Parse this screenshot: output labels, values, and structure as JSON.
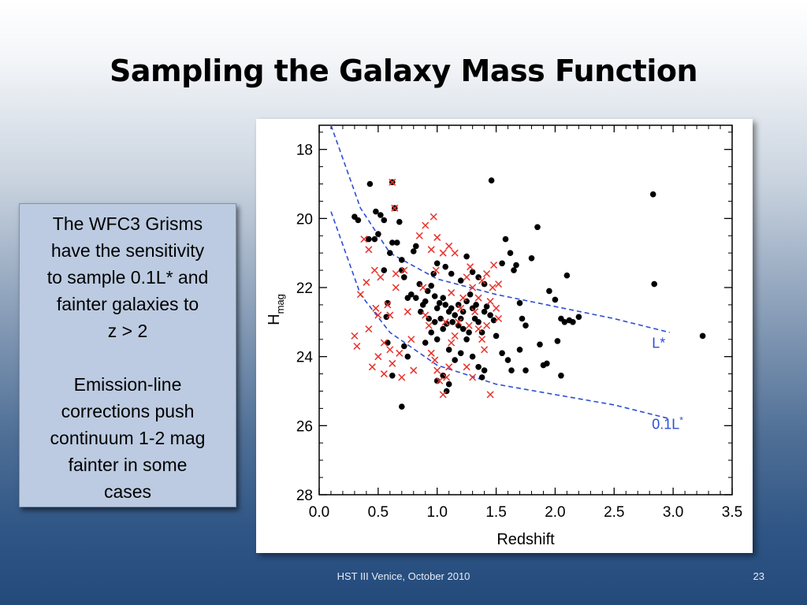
{
  "slide": {
    "title": "Sampling the Galaxy Mass Function",
    "footer": "HST III   Venice, October 2010",
    "page_number": "23"
  },
  "text_box": {
    "paragraph1": "The WFC3 Grisms\nhave the sensitivity\nto sample 0.1L* and\nfainter galaxies to\nz > 2",
    "paragraph2": "Emission-line\ncorrections push\ncontinuum 1-2 mag\nfainter in some\ncases",
    "background_color": "#bccbe1"
  },
  "chart_data": {
    "type": "scatter",
    "xlabel": "Redshift",
    "ylabel_main": "H",
    "ylabel_sub": "mag",
    "xlim": [
      0,
      3.5
    ],
    "ylim": [
      28,
      17.3
    ],
    "y_inverted": true,
    "x_ticks": [
      0.0,
      0.5,
      1.0,
      1.5,
      2.0,
      2.5,
      3.0,
      3.5
    ],
    "x_tick_labels": [
      "0.0",
      "0.5",
      "1.0",
      "1.5",
      "2.0",
      "2.5",
      "3.0",
      "3.5"
    ],
    "y_ticks": [
      18,
      20,
      22,
      24,
      26,
      28
    ],
    "y_tick_labels": [
      "18",
      "20",
      "22",
      "24",
      "26",
      "28"
    ],
    "grid": false,
    "series": [
      {
        "marker": "filled-circle",
        "color": "#000000",
        "points": [
          [
            0.3,
            19.95
          ],
          [
            0.33,
            20.05
          ],
          [
            0.42,
            20.6
          ],
          [
            0.43,
            19.0
          ],
          [
            0.48,
            19.8
          ],
          [
            0.5,
            20.45
          ],
          [
            0.52,
            19.9
          ],
          [
            0.55,
            20.05
          ],
          [
            0.62,
            18.95
          ],
          [
            0.64,
            19.7
          ],
          [
            0.68,
            20.1
          ],
          [
            0.55,
            21.5
          ],
          [
            0.57,
            22.85
          ],
          [
            0.58,
            22.45
          ],
          [
            0.6,
            21.0
          ],
          [
            0.62,
            20.7
          ],
          [
            0.66,
            20.7
          ],
          [
            0.7,
            21.5
          ],
          [
            0.7,
            21.2
          ],
          [
            0.72,
            21.7
          ],
          [
            0.75,
            22.3
          ],
          [
            0.78,
            22.2
          ],
          [
            0.8,
            20.95
          ],
          [
            0.82,
            20.8
          ],
          [
            0.85,
            21.9
          ],
          [
            0.88,
            22.5
          ],
          [
            0.9,
            22.4
          ],
          [
            0.92,
            22.1
          ],
          [
            0.95,
            21.95
          ],
          [
            0.98,
            22.25
          ],
          [
            1.0,
            22.6
          ],
          [
            1.02,
            22.45
          ],
          [
            1.05,
            22.3
          ],
          [
            1.07,
            22.5
          ],
          [
            1.1,
            22.7
          ],
          [
            1.12,
            22.6
          ],
          [
            1.15,
            22.8
          ],
          [
            1.18,
            22.5
          ],
          [
            1.2,
            22.9
          ],
          [
            1.22,
            23.2
          ],
          [
            1.25,
            22.4
          ],
          [
            1.28,
            22.2
          ],
          [
            1.3,
            22.6
          ],
          [
            1.32,
            22.9
          ],
          [
            1.35,
            23.0
          ],
          [
            1.38,
            23.3
          ],
          [
            1.4,
            22.7
          ],
          [
            1.42,
            22.55
          ],
          [
            1.45,
            22.8
          ],
          [
            1.48,
            22.95
          ],
          [
            0.72,
            23.7
          ],
          [
            0.75,
            24.0
          ],
          [
            0.9,
            23.6
          ],
          [
            0.95,
            23.3
          ],
          [
            1.0,
            23.5
          ],
          [
            1.05,
            23.2
          ],
          [
            1.1,
            23.8
          ],
          [
            1.15,
            24.1
          ],
          [
            1.2,
            23.9
          ],
          [
            1.25,
            23.5
          ],
          [
            1.3,
            24.0
          ],
          [
            1.35,
            24.3
          ],
          [
            1.38,
            24.6
          ],
          [
            1.4,
            24.4
          ],
          [
            1.0,
            24.7
          ],
          [
            1.05,
            24.55
          ],
          [
            1.08,
            25.0
          ],
          [
            1.1,
            24.8
          ],
          [
            0.7,
            25.45
          ],
          [
            0.97,
            21.6
          ],
          [
            1.0,
            21.3
          ],
          [
            1.07,
            21.4
          ],
          [
            1.12,
            21.6
          ],
          [
            1.2,
            21.8
          ],
          [
            1.25,
            21.1
          ],
          [
            1.3,
            21.55
          ],
          [
            1.35,
            21.7
          ],
          [
            1.4,
            21.9
          ],
          [
            1.46,
            18.9
          ],
          [
            1.55,
            21.3
          ],
          [
            1.58,
            20.6
          ],
          [
            1.62,
            21.0
          ],
          [
            1.65,
            21.5
          ],
          [
            1.67,
            21.35
          ],
          [
            1.7,
            22.45
          ],
          [
            1.72,
            22.9
          ],
          [
            1.75,
            23.1
          ],
          [
            1.8,
            21.15
          ],
          [
            1.85,
            20.25
          ],
          [
            1.87,
            23.65
          ],
          [
            1.9,
            24.25
          ],
          [
            1.93,
            24.2
          ],
          [
            1.95,
            22.1
          ],
          [
            2.0,
            22.35
          ],
          [
            2.02,
            23.55
          ],
          [
            2.05,
            22.9
          ],
          [
            2.08,
            23.0
          ],
          [
            2.1,
            21.65
          ],
          [
            2.12,
            22.95
          ],
          [
            2.15,
            23.0
          ],
          [
            2.2,
            22.85
          ],
          [
            2.83,
            19.3
          ],
          [
            2.84,
            21.9
          ],
          [
            3.25,
            23.4
          ],
          [
            1.5,
            23.4
          ],
          [
            1.55,
            23.9
          ],
          [
            1.6,
            24.1
          ],
          [
            1.63,
            24.4
          ],
          [
            1.7,
            23.8
          ],
          [
            1.75,
            24.4
          ],
          [
            2.05,
            24.55
          ],
          [
            0.82,
            22.3
          ],
          [
            0.86,
            22.7
          ],
          [
            0.93,
            22.9
          ],
          [
            0.98,
            23.0
          ],
          [
            1.03,
            22.9
          ],
          [
            1.08,
            23.05
          ],
          [
            1.13,
            23.0
          ],
          [
            1.18,
            23.1
          ],
          [
            1.22,
            22.7
          ],
          [
            1.27,
            23.3
          ],
          [
            1.33,
            22.5
          ],
          [
            0.58,
            23.6
          ],
          [
            0.62,
            24.55
          ],
          [
            0.47,
            20.6
          ]
        ]
      },
      {
        "marker": "red-x",
        "color": "#e8322c",
        "points": [
          [
            0.3,
            23.4
          ],
          [
            0.32,
            23.7
          ],
          [
            0.35,
            22.2
          ],
          [
            0.4,
            21.85
          ],
          [
            0.42,
            23.2
          ],
          [
            0.45,
            24.3
          ],
          [
            0.48,
            22.6
          ],
          [
            0.5,
            22.8
          ],
          [
            0.5,
            24.0
          ],
          [
            0.55,
            23.6
          ],
          [
            0.55,
            24.5
          ],
          [
            0.58,
            22.5
          ],
          [
            0.6,
            23.8
          ],
          [
            0.62,
            24.2
          ],
          [
            0.65,
            22.0
          ],
          [
            0.68,
            23.9
          ],
          [
            0.7,
            24.6
          ],
          [
            0.72,
            21.5
          ],
          [
            0.75,
            22.7
          ],
          [
            0.78,
            23.5
          ],
          [
            0.8,
            24.4
          ],
          [
            0.47,
            21.5
          ],
          [
            0.42,
            20.9
          ],
          [
            0.38,
            20.6
          ],
          [
            0.52,
            21.7
          ],
          [
            0.65,
            21.6
          ],
          [
            0.62,
            18.95
          ],
          [
            0.64,
            19.7
          ],
          [
            0.88,
            22.0
          ],
          [
            0.9,
            22.8
          ],
          [
            0.93,
            23.1
          ],
          [
            0.95,
            23.9
          ],
          [
            0.98,
            24.1
          ],
          [
            1.0,
            24.4
          ],
          [
            1.02,
            24.7
          ],
          [
            1.05,
            25.1
          ],
          [
            1.08,
            24.6
          ],
          [
            1.1,
            24.3
          ],
          [
            1.12,
            23.6
          ],
          [
            1.15,
            23.4
          ],
          [
            1.18,
            23.0
          ],
          [
            1.2,
            22.6
          ],
          [
            1.22,
            22.3
          ],
          [
            1.25,
            21.7
          ],
          [
            1.28,
            21.4
          ],
          [
            1.3,
            22.0
          ],
          [
            1.32,
            22.7
          ],
          [
            1.35,
            23.2
          ],
          [
            1.38,
            23.5
          ],
          [
            1.4,
            23.8
          ],
          [
            1.42,
            23.1
          ],
          [
            1.45,
            22.4
          ],
          [
            1.47,
            22.0
          ],
          [
            1.5,
            22.6
          ],
          [
            1.52,
            22.9
          ],
          [
            1.45,
            25.1
          ],
          [
            1.3,
            24.6
          ],
          [
            1.25,
            24.3
          ],
          [
            0.85,
            20.5
          ],
          [
            0.9,
            20.2
          ],
          [
            0.95,
            20.9
          ],
          [
            1.0,
            20.55
          ],
          [
            1.05,
            21.0
          ],
          [
            1.1,
            20.8
          ],
          [
            1.15,
            21.0
          ],
          [
            0.97,
            19.95
          ],
          [
            0.99,
            21.5
          ],
          [
            1.12,
            22.15
          ],
          [
            1.35,
            22.3
          ],
          [
            1.38,
            21.8
          ],
          [
            1.42,
            21.6
          ],
          [
            1.48,
            21.35
          ],
          [
            1.52,
            21.9
          ],
          [
            0.6,
            22.8
          ],
          [
            1.07,
            23.0
          ],
          [
            1.27,
            23.1
          ]
        ]
      }
    ],
    "curves": [
      {
        "label": "L*",
        "color": "#2b4ed6",
        "style": "dashed",
        "points": [
          [
            0.1,
            17.3
          ],
          [
            0.35,
            19.7
          ],
          [
            0.6,
            21.0
          ],
          [
            1.0,
            21.75
          ],
          [
            1.5,
            22.2
          ],
          [
            2.0,
            22.55
          ],
          [
            2.5,
            22.9
          ],
          [
            2.97,
            23.3
          ]
        ]
      },
      {
        "label": "0.1L",
        "label_superscript": "*",
        "color": "#2b4ed6",
        "style": "dashed",
        "points": [
          [
            0.1,
            19.8
          ],
          [
            0.35,
            22.2
          ],
          [
            0.6,
            23.3
          ],
          [
            1.0,
            24.25
          ],
          [
            1.5,
            24.8
          ],
          [
            2.0,
            25.1
          ],
          [
            2.5,
            25.4
          ],
          [
            2.97,
            25.8
          ]
        ]
      }
    ],
    "curve_label_positions": [
      [
        2.82,
        23.75
      ],
      [
        2.82,
        26.1
      ]
    ]
  }
}
